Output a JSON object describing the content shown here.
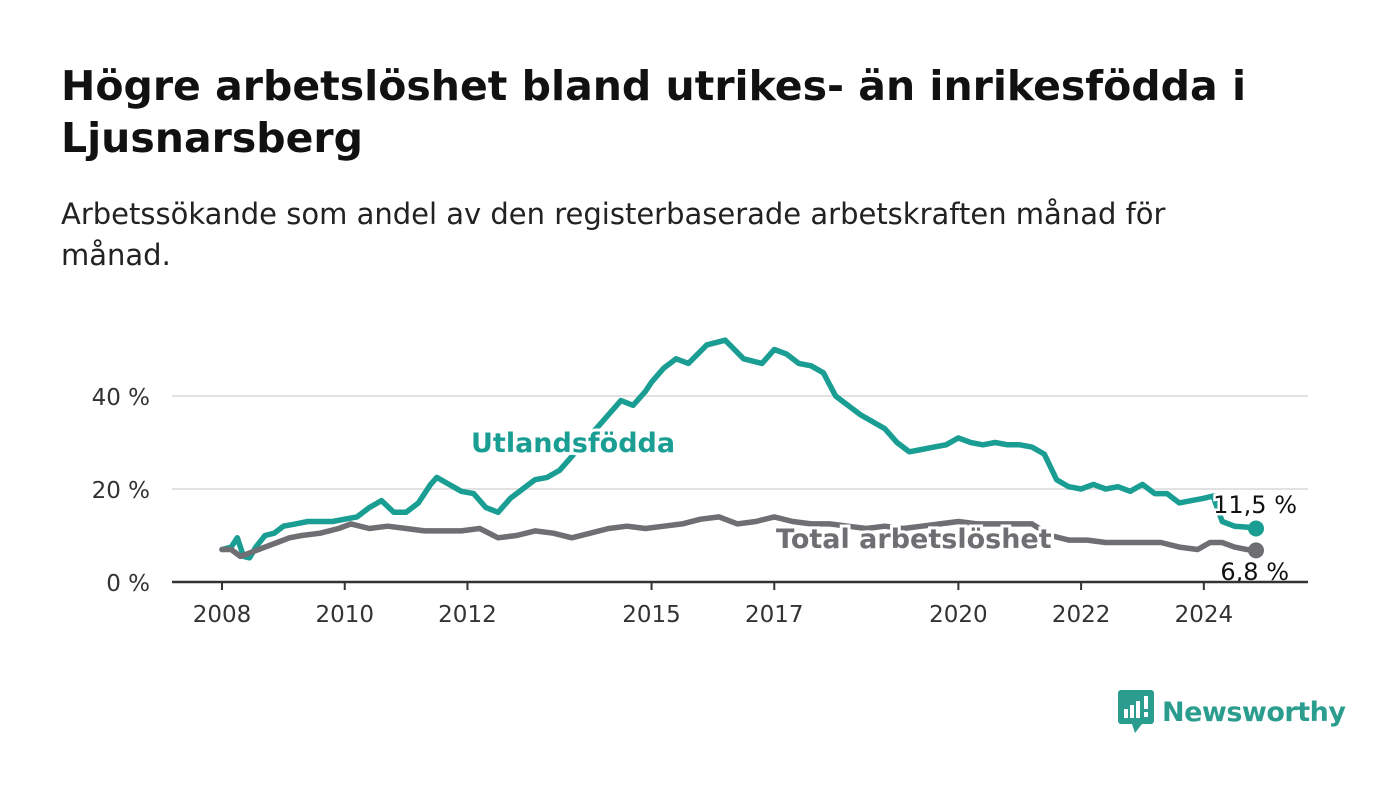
{
  "title": "Högre arbetslöshet bland utrikes- än inrikesfödda i Ljusnarsberg",
  "subtitle": "Arbetssökande som andel av den registerbaserade arbetskraften månad för månad.",
  "brand": {
    "name": "Newsworthy",
    "color": "#2a9d8f"
  },
  "chart_data": {
    "type": "line",
    "xlim": [
      2008.0,
      2025.7
    ],
    "ylim": [
      0,
      55
    ],
    "y_ticks": [
      {
        "value": 0,
        "label": "0 %"
      },
      {
        "value": 20,
        "label": "20 %"
      },
      {
        "value": 40,
        "label": "40 %"
      }
    ],
    "x_ticks": [
      {
        "value": 2008,
        "label": "2008"
      },
      {
        "value": 2010,
        "label": "2010"
      },
      {
        "value": 2012,
        "label": "2012"
      },
      {
        "value": 2015,
        "label": "2015"
      },
      {
        "value": 2017,
        "label": "2017"
      },
      {
        "value": 2020,
        "label": "2020"
      },
      {
        "value": 2022,
        "label": "2022"
      },
      {
        "value": 2024,
        "label": "2024"
      }
    ],
    "grid": true,
    "series": [
      {
        "name": "Utlandsfödda",
        "color": "#1a9e93",
        "end_label": "11,5 %",
        "x": [
          2008.0,
          2008.15,
          2008.25,
          2008.35,
          2008.45,
          2008.55,
          2008.7,
          2008.85,
          2009.0,
          2009.2,
          2009.4,
          2009.6,
          2009.8,
          2010.0,
          2010.2,
          2010.4,
          2010.6,
          2010.8,
          2011.0,
          2011.2,
          2011.4,
          2011.5,
          2011.7,
          2011.9,
          2012.1,
          2012.3,
          2012.5,
          2012.7,
          2012.9,
          2013.1,
          2013.3,
          2013.5,
          2013.7,
          2013.9,
          2014.1,
          2014.3,
          2014.5,
          2014.7,
          2014.9,
          2015.0,
          2015.2,
          2015.4,
          2015.6,
          2015.9,
          2016.2,
          2016.5,
          2016.8,
          2017.0,
          2017.2,
          2017.4,
          2017.6,
          2017.8,
          2018.0,
          2018.2,
          2018.4,
          2018.6,
          2018.8,
          2019.0,
          2019.2,
          2019.4,
          2019.6,
          2019.8,
          2020.0,
          2020.2,
          2020.4,
          2020.6,
          2020.8,
          2021.0,
          2021.2,
          2021.4,
          2021.6,
          2021.8,
          2022.0,
          2022.2,
          2022.4,
          2022.6,
          2022.8,
          2023.0,
          2023.2,
          2023.4,
          2023.6,
          2023.8,
          2024.0,
          2024.15,
          2024.3,
          2024.5,
          2024.7,
          2024.85
        ],
        "values": [
          7,
          7.5,
          9.5,
          5.5,
          5.2,
          7.5,
          10,
          10.5,
          12,
          12.5,
          13,
          13,
          13,
          13.5,
          14,
          16,
          17.5,
          15,
          15,
          17,
          21,
          22.5,
          21,
          19.5,
          19,
          16,
          15,
          18,
          20,
          22,
          22.5,
          24,
          27,
          30,
          33,
          36,
          39,
          38,
          41,
          43,
          46,
          48,
          47,
          51,
          52,
          48,
          47,
          50,
          49,
          47,
          46.5,
          45,
          40,
          38,
          36,
          34.5,
          33,
          30,
          28,
          28.5,
          29,
          29.5,
          31,
          30,
          29.5,
          30,
          29.5,
          29.5,
          29,
          27.5,
          22,
          20.5,
          20,
          21,
          20,
          20.5,
          19.5,
          21,
          19,
          19,
          17,
          17.5,
          18,
          18.5,
          13,
          12,
          11.8,
          11.5
        ]
      },
      {
        "name": "Total arbetslöshet",
        "color": "#6e6e73",
        "end_label": "6,8 %",
        "x": [
          2008.0,
          2008.15,
          2008.3,
          2008.5,
          2008.7,
          2008.9,
          2009.1,
          2009.3,
          2009.6,
          2009.9,
          2010.1,
          2010.4,
          2010.7,
          2011.0,
          2011.3,
          2011.6,
          2011.9,
          2012.2,
          2012.5,
          2012.8,
          2013.1,
          2013.4,
          2013.7,
          2014.0,
          2014.3,
          2014.6,
          2014.9,
          2015.2,
          2015.5,
          2015.8,
          2016.1,
          2016.4,
          2016.7,
          2017.0,
          2017.3,
          2017.6,
          2017.9,
          2018.2,
          2018.5,
          2018.8,
          2019.1,
          2019.4,
          2019.7,
          2020.0,
          2020.3,
          2020.6,
          2020.9,
          2021.2,
          2021.5,
          2021.8,
          2022.1,
          2022.4,
          2022.7,
          2023.0,
          2023.3,
          2023.6,
          2023.9,
          2024.1,
          2024.3,
          2024.5,
          2024.7,
          2024.85
        ],
        "values": [
          7,
          7,
          5.5,
          6.5,
          7.5,
          8.5,
          9.5,
          10,
          10.5,
          11.5,
          12.5,
          11.5,
          12,
          11.5,
          11,
          11,
          11,
          11.5,
          9.5,
          10,
          11,
          10.5,
          9.5,
          10.5,
          11.5,
          12,
          11.5,
          12,
          12.5,
          13.5,
          14,
          12.5,
          13,
          14,
          13,
          12.5,
          12.5,
          12,
          11.5,
          12,
          11.5,
          12,
          12.5,
          13,
          12.5,
          12.5,
          12.5,
          12.5,
          10,
          9,
          9,
          8.5,
          8.5,
          8.5,
          8.5,
          7.5,
          7,
          8.5,
          8.5,
          7.5,
          7,
          6.8
        ]
      }
    ],
    "annotations": [
      {
        "series": 0,
        "text": "Utlandsfödda"
      },
      {
        "series": 1,
        "text": "Total arbetslöshet"
      }
    ]
  }
}
